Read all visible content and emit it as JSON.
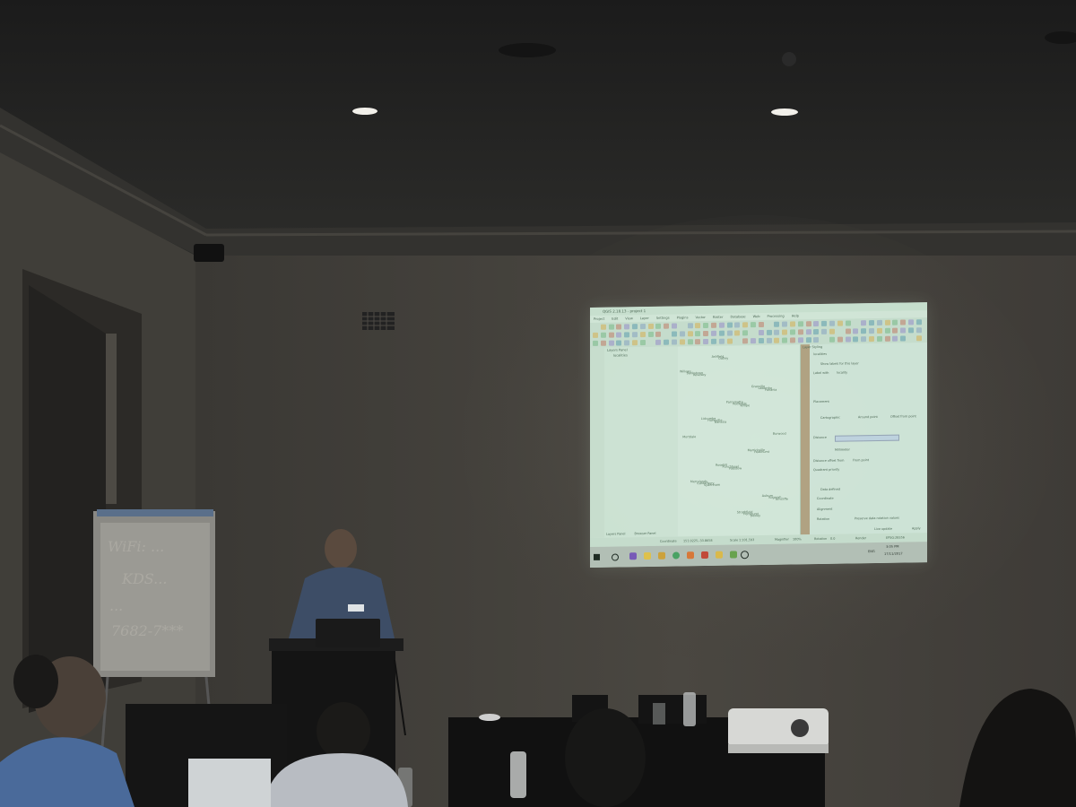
{
  "projection": {
    "title": "QGIS 2.18.13 - project 1",
    "menu": [
      "Project",
      "Edit",
      "View",
      "Layer",
      "Settings",
      "Plugins",
      "Vector",
      "Raster",
      "Database",
      "Web",
      "Processing",
      "Help"
    ],
    "layers_panel": {
      "title": "Layers Panel",
      "layer": "localities",
      "tabs": [
        "Layers Panel",
        "Browser Panel"
      ]
    },
    "map_places": [
      "Willows",
      "Rosehill",
      "Granville",
      "Merrylands",
      "Parramatta",
      "Auburn",
      "Lidcombe",
      "Strathfield",
      "Burwood",
      "Ashfield",
      "Marrickville",
      "Bankstown",
      "Punchbowl",
      "Lakemba",
      "Canterbury",
      "Rockdale",
      "Kogarah",
      "Hurstville",
      "Penshurst",
      "Mortdale",
      "Oatley",
      "Peakhurst",
      "Revesby",
      "Padstow",
      "Panania",
      "Sydenham",
      "Tempe",
      "Arncliffe",
      "Banksia",
      "Bexley"
    ],
    "style_panel": {
      "title": "Layer Styling",
      "layer": "localities",
      "mode": "Show labels for this layer",
      "label_with": "Label with",
      "label_field": "locality",
      "placement": "Placement",
      "options": [
        "Cartographic",
        "Around point",
        "Offset from point"
      ],
      "distance": "Distance",
      "units": "Millimeter",
      "distance_from": "Distance offset from",
      "distance_from_value": "From point",
      "quadrant": "Quadrant priority",
      "data_defined": "Data defined",
      "coordinate": "Coordinate",
      "alignment": "Alignment",
      "rotation": "Rotation",
      "preserve": "Preserve data rotation values",
      "live_update": "Live update",
      "apply": "Apply"
    },
    "status": {
      "coordinate_label": "Coordinate",
      "coordinate": "151.0225,-33.8658",
      "scale_label": "Scale",
      "scale": "1:101,593",
      "magnifier_label": "Magnifier",
      "magnifier": "100%",
      "rotation_label": "Rotation",
      "rotation": "0.0",
      "render": "Render",
      "crs": "EPSG:28356"
    },
    "taskbar": {
      "lang": "ENG",
      "time": "3:05 PM",
      "date": "17/11/2017"
    }
  },
  "flipchart": {
    "lines": [
      "WiFi: ...",
      "KDS...",
      "...",
      "7682-7***"
    ]
  },
  "colors": {
    "wall": "#3f3c37",
    "ceiling": "#1f1f1e",
    "screen": "#d9efe0"
  }
}
